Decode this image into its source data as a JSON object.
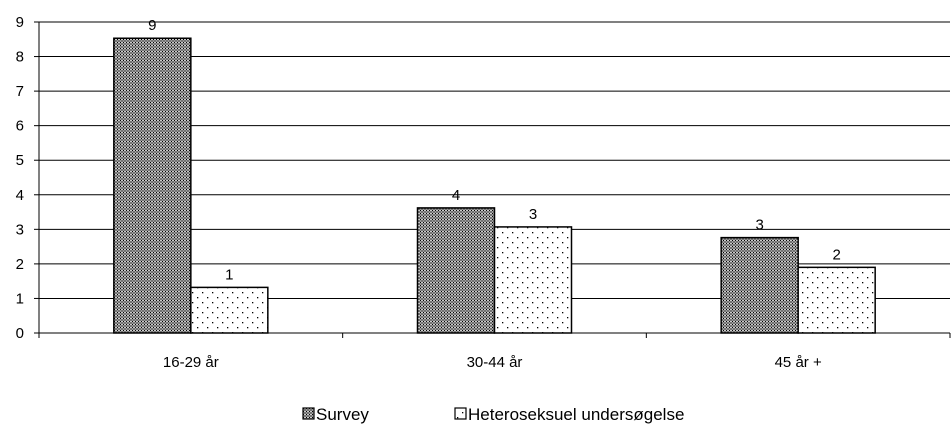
{
  "chart_data": {
    "type": "bar",
    "categories": [
      "16-29 år",
      "30-44 år",
      "45 år +"
    ],
    "series": [
      {
        "name": "Survey",
        "values": [
          8.53,
          3.62,
          2.76
        ],
        "data_labels": [
          "9",
          "4",
          "3"
        ],
        "pattern": "dense-crosshatch"
      },
      {
        "name": "Heteroseksuel undersøgelse",
        "values": [
          1.32,
          3.07,
          1.9
        ],
        "data_labels": [
          "1",
          "3",
          "2"
        ],
        "pattern": "sparse-dots"
      }
    ],
    "title": "",
    "xlabel": "",
    "ylabel": "",
    "ylim": [
      0,
      9
    ],
    "yticks": [
      "0",
      "1",
      "2",
      "3",
      "4",
      "5",
      "6",
      "7",
      "8",
      "9"
    ],
    "grid": true,
    "legend_position": "bottom",
    "colors": {
      "bar_fill": "#ffffff",
      "pattern_ink": "#000000",
      "gridline": "#000000",
      "border": "#000000"
    }
  }
}
